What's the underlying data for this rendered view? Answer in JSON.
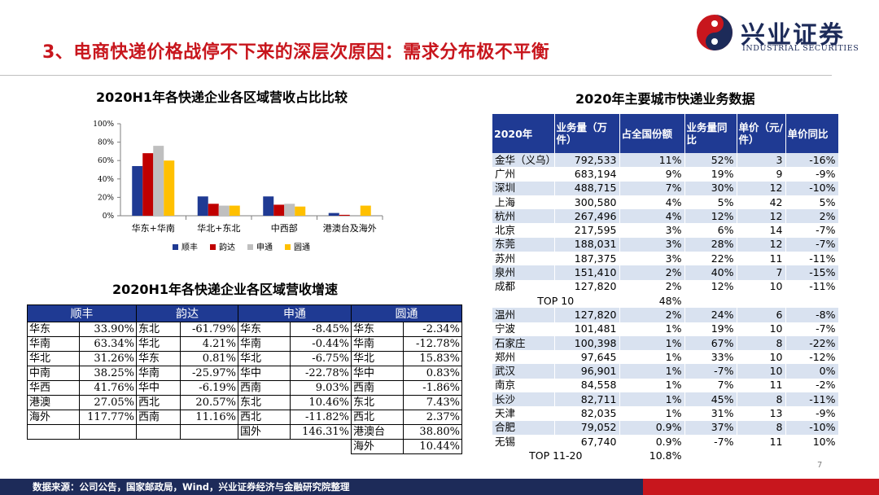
{
  "header": {
    "title": "3、电商快递价格战停不下来的深层次原因：需求分布极不平衡",
    "logo_name": "兴业证券",
    "logo_sub": "INDUSTRIAL SECURITIES"
  },
  "colors": {
    "navy": "#1f3a93",
    "red": "#c00000",
    "gray": "#bfbfbf",
    "yellow": "#ffc000",
    "brand_red": "#c8161d",
    "brand_navy": "#1d2b59"
  },
  "chart_data": {
    "type": "bar",
    "title": "2020H1年各快递企业各区域营收占比比较",
    "categories": [
      "华东+华南",
      "华北+东北",
      "中西部",
      "港澳台及海外"
    ],
    "series": [
      {
        "name": "顺丰",
        "values": [
          54,
          21,
          21,
          3
        ]
      },
      {
        "name": "韵达",
        "values": [
          68,
          13,
          12,
          1
        ]
      },
      {
        "name": "申通",
        "values": [
          76,
          11,
          13,
          0
        ]
      },
      {
        "name": "圆通",
        "values": [
          60,
          11,
          10,
          11
        ]
      }
    ],
    "ylim": [
      0,
      100
    ],
    "yticks": [
      "0%",
      "20%",
      "40%",
      "60%",
      "80%",
      "100%"
    ],
    "legend_position": "bottom"
  },
  "growth": {
    "title": "2020H1年各快递企业各区域营收增速",
    "headers": [
      "顺丰",
      "韵达",
      "申通",
      "圆通"
    ],
    "rows": [
      [
        "华东",
        "33.90%",
        "东北",
        "-61.79%",
        "华东",
        "-8.45%",
        "华东",
        "-2.34%"
      ],
      [
        "华南",
        "63.34%",
        "华北",
        "4.21%",
        "华南",
        "-0.44%",
        "华南",
        "-12.78%"
      ],
      [
        "华北",
        "31.26%",
        "华东",
        "0.81%",
        "华北",
        "-6.75%",
        "华北",
        "15.83%"
      ],
      [
        "中南",
        "38.25%",
        "华南",
        "-25.97%",
        "华中",
        "-22.78%",
        "华中",
        "0.83%"
      ],
      [
        "华西",
        "41.76%",
        "华中",
        "-6.19%",
        "西南",
        "9.03%",
        "西南",
        "-1.86%"
      ],
      [
        "港澳",
        "27.05%",
        "西北",
        "20.57%",
        "东北",
        "10.46%",
        "东北",
        "7.43%"
      ],
      [
        "海外",
        "117.77%",
        "西南",
        "11.16%",
        "西北",
        "-11.82%",
        "西北",
        "2.37%"
      ],
      [
        "",
        "",
        "",
        "",
        "国外",
        "146.31%",
        "港澳台",
        "38.80%"
      ],
      [
        "",
        "",
        "",
        "",
        "",
        "",
        "海外",
        "10.44%"
      ]
    ]
  },
  "cities": {
    "title": "2020年主要城市快递业务数据",
    "headers": [
      "2020年",
      "业务量（万件）",
      "占全国份额",
      "业务量同比",
      "单价（元/件）",
      "单价同比"
    ],
    "top10": [
      [
        "金华（义乌）",
        "792,533",
        "11%",
        "52%",
        "3",
        "-16%"
      ],
      [
        "广州",
        "683,194",
        "9%",
        "19%",
        "9",
        "-9%"
      ],
      [
        "深圳",
        "488,715",
        "7%",
        "30%",
        "12",
        "-10%"
      ],
      [
        "上海",
        "300,580",
        "4%",
        "5%",
        "42",
        "5%"
      ],
      [
        "杭州",
        "267,496",
        "4%",
        "12%",
        "12",
        "2%"
      ],
      [
        "北京",
        "217,595",
        "3%",
        "6%",
        "14",
        "-7%"
      ],
      [
        "东莞",
        "188,031",
        "3%",
        "28%",
        "12",
        "-7%"
      ],
      [
        "苏州",
        "187,375",
        "3%",
        "22%",
        "11",
        "-11%"
      ],
      [
        "泉州",
        "151,410",
        "2%",
        "40%",
        "7",
        "-15%"
      ],
      [
        "成都",
        "127,820",
        "2%",
        "12%",
        "10",
        "-11%"
      ]
    ],
    "top10_label": "TOP 10",
    "top10_share": "48%",
    "top20": [
      [
        "温州",
        "127,820",
        "2%",
        "24%",
        "6",
        "-8%"
      ],
      [
        "宁波",
        "101,481",
        "1%",
        "19%",
        "10",
        "-7%"
      ],
      [
        "石家庄",
        "100,398",
        "1%",
        "67%",
        "8",
        "-22%"
      ],
      [
        "郑州",
        "97,645",
        "1%",
        "33%",
        "10",
        "-12%"
      ],
      [
        "武汉",
        "96,901",
        "1%",
        "-7%",
        "10",
        "0%"
      ],
      [
        "南京",
        "84,558",
        "1%",
        "7%",
        "11",
        "-2%"
      ],
      [
        "长沙",
        "82,711",
        "1%",
        "45%",
        "8",
        "-11%"
      ],
      [
        "天津",
        "82,035",
        "1%",
        "31%",
        "13",
        "-9%"
      ],
      [
        "合肥",
        "79,052",
        "0.9%",
        "37%",
        "8",
        "-10%"
      ],
      [
        "无锡",
        "67,740",
        "0.9%",
        "-7%",
        "11",
        "10%"
      ]
    ],
    "top20_label": "TOP 11-20",
    "top20_share": "10.8%"
  },
  "footer": {
    "source": "数据来源：公司公告，国家邮政局，Wind，兴业证券经济与金融研究院整理",
    "page": "7"
  }
}
